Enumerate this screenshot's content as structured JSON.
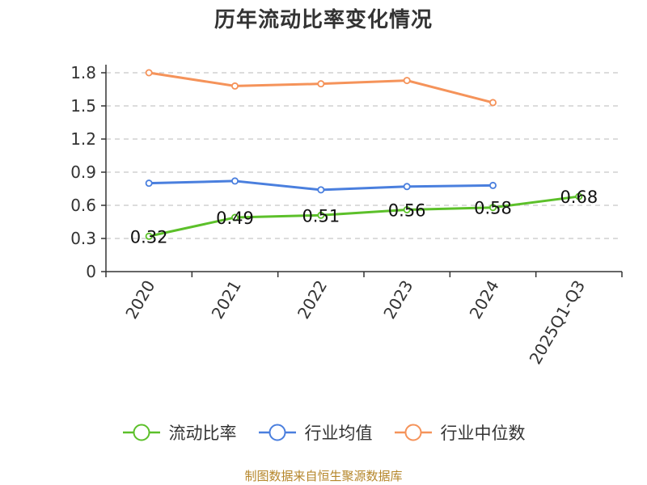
{
  "chart_data": {
    "type": "line",
    "title": "历年流动比率变化情况",
    "categories": [
      "2020",
      "2021",
      "2022",
      "2023",
      "2024",
      "2025Q1-Q3"
    ],
    "ylim": [
      0,
      1.8
    ],
    "yticks": [
      0,
      0.3,
      0.6,
      0.9,
      1.2,
      1.5,
      1.8
    ],
    "ytick_labels": [
      "0",
      "0.3",
      "0.6",
      "0.9",
      "1.2",
      "1.5",
      "1.8"
    ],
    "grid": true,
    "legend_position": "bottom",
    "series": [
      {
        "name": "流动比率",
        "color": "#5cc02a",
        "values": [
          0.32,
          0.49,
          0.51,
          0.56,
          0.58,
          0.68
        ],
        "data_labels": [
          "0.32",
          "0.49",
          "0.51",
          "0.56",
          "0.58",
          "0.68"
        ]
      },
      {
        "name": "行业均值",
        "color": "#4a7fde",
        "values": [
          0.8,
          0.82,
          0.74,
          0.77,
          0.78,
          null
        ]
      },
      {
        "name": "行业中位数",
        "color": "#f5935a",
        "values": [
          1.8,
          1.68,
          1.7,
          1.73,
          1.53,
          null
        ]
      }
    ]
  },
  "footer": {
    "source": "制图数据来自恒生聚源数据库"
  }
}
